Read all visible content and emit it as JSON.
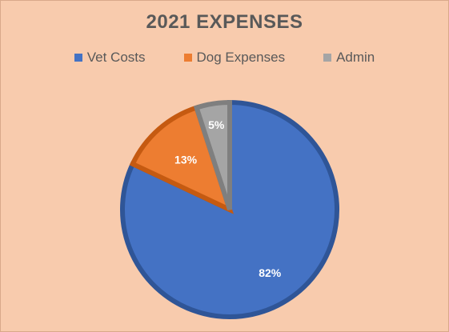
{
  "chart_data": {
    "type": "pie",
    "title": "2021 EXPENSES",
    "legend_position": "top",
    "categories": [
      "Vet Costs",
      "Dog Expenses",
      "Admin"
    ],
    "values": [
      82,
      13,
      5
    ],
    "labels": [
      "82%",
      "13%",
      "5%"
    ],
    "colors": [
      "#4472c4",
      "#ed7d31",
      "#a5a5a5"
    ],
    "border_colors": [
      "#2f5597",
      "#c55a11",
      "#7f7f7f"
    ]
  }
}
